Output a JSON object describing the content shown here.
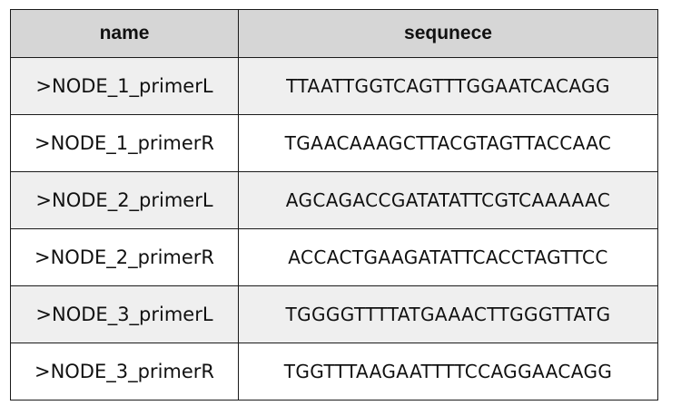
{
  "table": {
    "headers": [
      "name",
      "sequnece"
    ],
    "rows": [
      {
        "name": ">NODE_1_primerL",
        "sequence": "TTAATTGGTCAGTTTGGAATCACAGG"
      },
      {
        "name": ">NODE_1_primerR",
        "sequence": "TGAACAAAGCTTACGTAGTTACCAAC"
      },
      {
        "name": ">NODE_2_primerL",
        "sequence": "AGCAGACCGATATATTCGTCAAAAAC"
      },
      {
        "name": ">NODE_2_primerR",
        "sequence": "ACCACTGAAGATATTCACCTAGTTCC"
      },
      {
        "name": ">NODE_3_primerL",
        "sequence": "TGGGGTTTTATGAAACTTGGGTTATG"
      },
      {
        "name": ">NODE_3_primerR",
        "sequence": "TGGTTTAAGAATTTTCCAGGAACAGG"
      }
    ]
  },
  "colors": {
    "header_bg": "#d6d6d6",
    "odd_row_bg": "#efefef",
    "even_row_bg": "#ffffff",
    "border": "#1a1a1a"
  }
}
